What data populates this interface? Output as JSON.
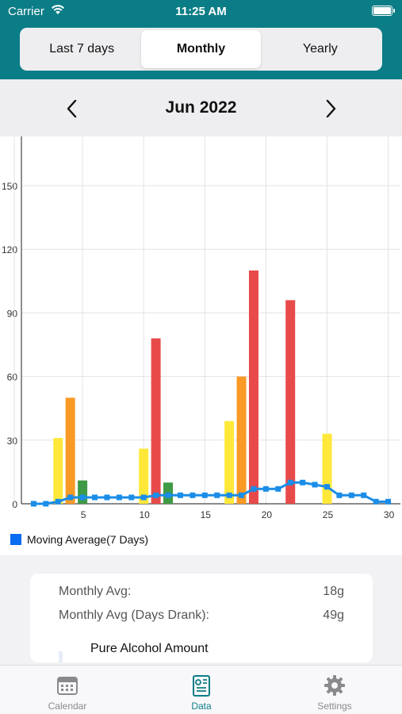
{
  "status": {
    "carrier": "Carrier",
    "time": "11:25 AM"
  },
  "segments": {
    "items": [
      "Last 7 days",
      "Monthly",
      "Yearly"
    ],
    "active": "Monthly"
  },
  "month_nav": {
    "title": "Jun 2022"
  },
  "legend": {
    "label": "Moving Average(7 Days)"
  },
  "summary": {
    "monthly_avg_label": "Monthly Avg:",
    "monthly_avg_value": "18g",
    "days_drank_label": "Monthly Avg (Days Drank):",
    "days_drank_value": "49g",
    "section_title": "Pure Alcohol Amount"
  },
  "tabbar": {
    "items": [
      {
        "label": "Calendar",
        "icon": "calendar-icon"
      },
      {
        "label": "Data",
        "icon": "data-icon"
      },
      {
        "label": "Settings",
        "icon": "gear-icon"
      }
    ],
    "active": "Data"
  },
  "colors": {
    "teal": "#0b7d86",
    "low": "#ffe83a",
    "mid": "#f99a25",
    "high": "#e84a4a",
    "zero": "#3f9a45",
    "avg": "#1a8de8"
  },
  "chart_data": {
    "type": "bar",
    "xlim": [
      0,
      31
    ],
    "ylim": [
      0,
      150
    ],
    "xticks": [
      5,
      10,
      15,
      20,
      25,
      30
    ],
    "yticks": [
      0,
      30,
      60,
      90,
      120,
      150
    ],
    "grid": true,
    "bars": [
      {
        "day": 3,
        "value": 31,
        "color": "#ffe83a"
      },
      {
        "day": 4,
        "value": 50,
        "color": "#f99a25"
      },
      {
        "day": 5,
        "value": 11,
        "color": "#3f9a45"
      },
      {
        "day": 10,
        "value": 26,
        "color": "#ffe83a"
      },
      {
        "day": 11,
        "value": 78,
        "color": "#e84a4a"
      },
      {
        "day": 12,
        "value": 10,
        "color": "#3f9a45"
      },
      {
        "day": 17,
        "value": 39,
        "color": "#ffe83a"
      },
      {
        "day": 18,
        "value": 60,
        "color": "#f99a25"
      },
      {
        "day": 19,
        "value": 110,
        "color": "#e84a4a"
      },
      {
        "day": 22,
        "value": 96,
        "color": "#e84a4a"
      },
      {
        "day": 25,
        "value": 33,
        "color": "#ffe83a"
      }
    ],
    "series": [
      {
        "name": "Moving Average(7 Days)",
        "x": [
          1,
          2,
          3,
          4,
          5,
          6,
          7,
          8,
          9,
          10,
          11,
          12,
          13,
          14,
          15,
          16,
          17,
          18,
          19,
          20,
          21,
          22,
          23,
          24,
          25,
          26,
          27,
          28,
          29,
          30
        ],
        "values": [
          0,
          0,
          1,
          3,
          3,
          3,
          3,
          3,
          3,
          3,
          4,
          4,
          4,
          4,
          4,
          4,
          4,
          4,
          7,
          7,
          7,
          10,
          10,
          9,
          8,
          4,
          4,
          4,
          1,
          1
        ]
      }
    ]
  }
}
